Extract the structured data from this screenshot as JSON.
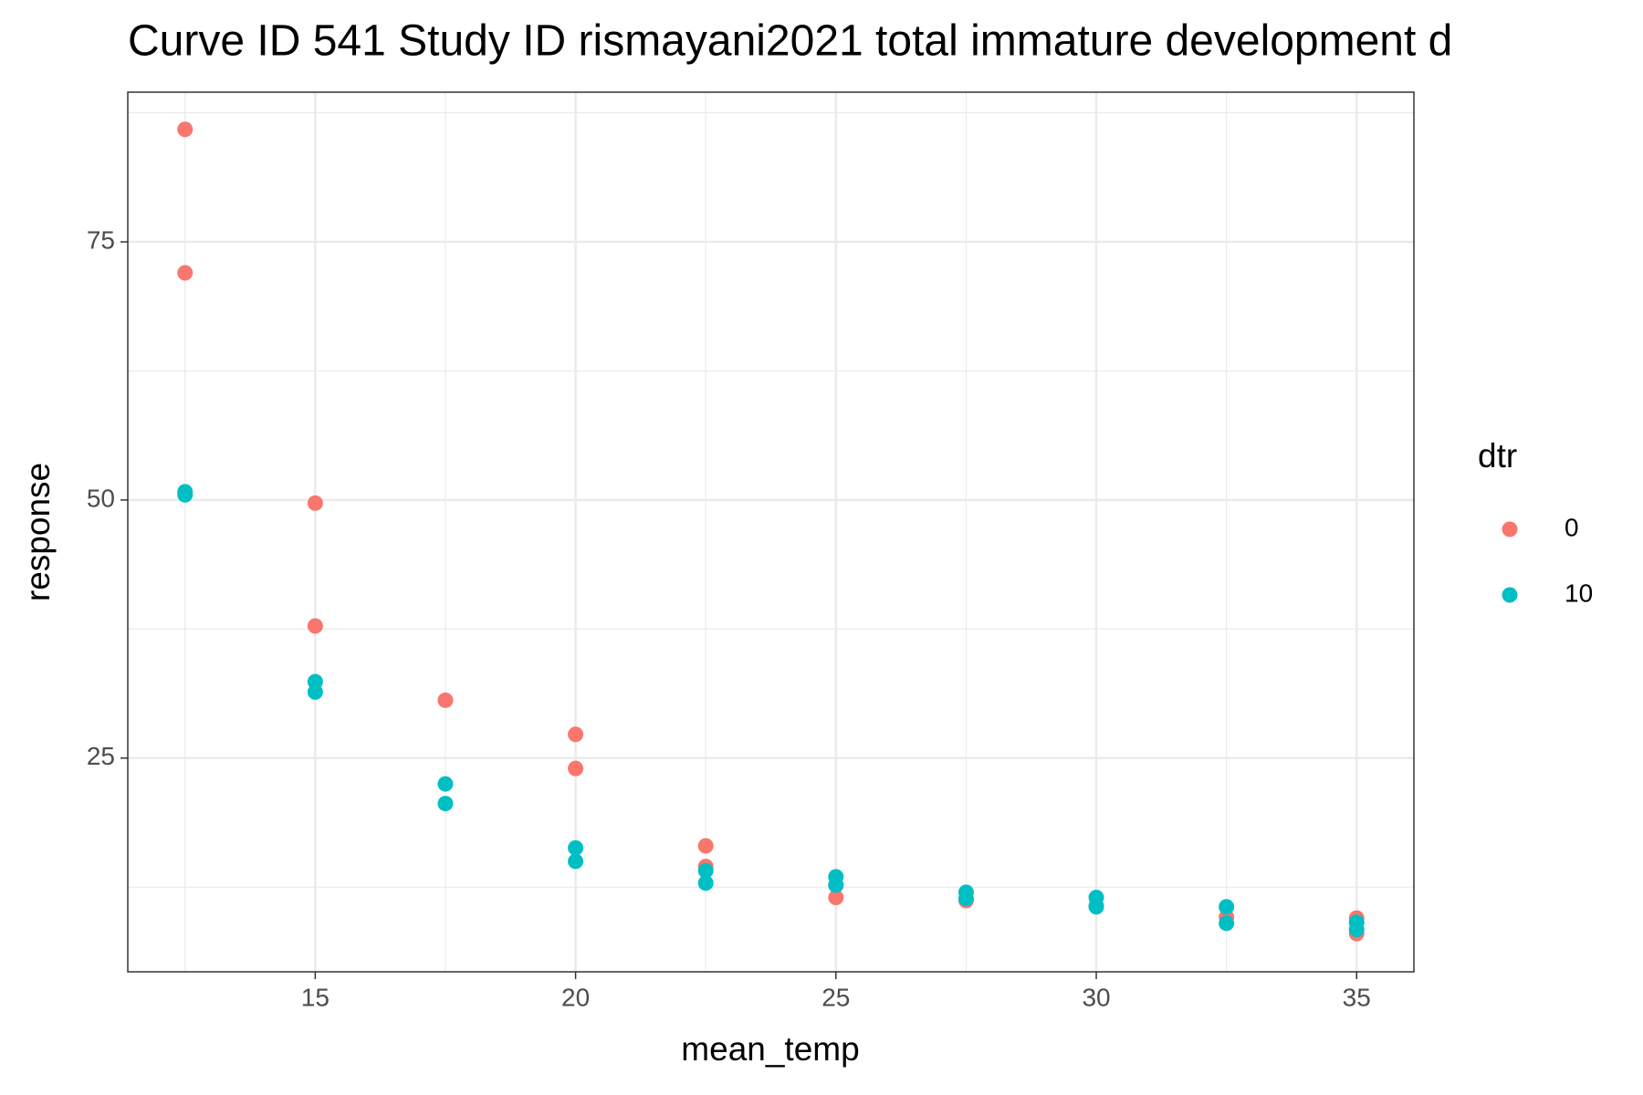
{
  "chart_data": {
    "type": "scatter",
    "title": "Curve ID 541 Study ID rismayani2021 total immature development d",
    "x_label": "mean_temp",
    "y_label": "response",
    "legend_title": "dtr",
    "legend_position": "right",
    "grid": true,
    "xlim": [
      11.4,
      36.1
    ],
    "ylim": [
      4.3,
      89.5
    ],
    "xticks": [
      15,
      20,
      25,
      30,
      35
    ],
    "yticks": [
      25,
      50,
      75
    ],
    "x_minor_ticks": [
      12.5,
      17.5,
      22.5,
      27.5,
      32.5
    ],
    "y_minor_ticks": [
      12.5,
      37.5,
      62.5,
      87.5
    ],
    "series": [
      {
        "name": "0",
        "color": "#F8766D",
        "x": [
          12.5,
          12.5,
          15,
          15,
          17.5,
          20,
          20,
          22.5,
          22.5,
          25,
          25,
          27.5,
          30,
          32.5,
          35,
          35
        ],
        "values": [
          85.9,
          72.0,
          49.7,
          37.8,
          30.6,
          27.3,
          24.0,
          16.5,
          14.5,
          12.7,
          11.5,
          11.2,
          10.7,
          9.6,
          9.5,
          8.0
        ]
      },
      {
        "name": "10",
        "color": "#00BFC4",
        "x": [
          12.5,
          12.5,
          15,
          15,
          17.5,
          17.5,
          20,
          20,
          22.5,
          22.5,
          25,
          25,
          27.5,
          27.5,
          30,
          30,
          32.5,
          32.5,
          35,
          35
        ],
        "values": [
          50.8,
          50.5,
          32.4,
          31.4,
          22.5,
          20.6,
          16.3,
          15.0,
          14.1,
          12.9,
          13.5,
          12.7,
          12.0,
          11.4,
          11.5,
          10.6,
          10.6,
          9.0,
          9.1,
          8.4
        ]
      }
    ]
  }
}
